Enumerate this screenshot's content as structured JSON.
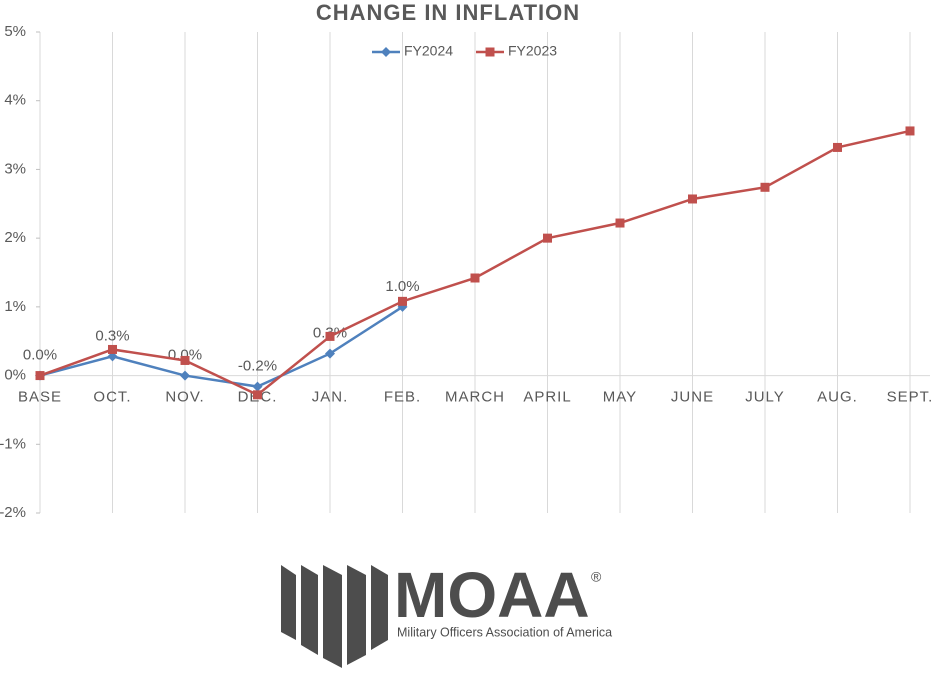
{
  "chart_data": {
    "type": "line",
    "title": "CHANGE IN INFLATION",
    "categories": [
      "BASE",
      "OCT.",
      "NOV.",
      "DEC.",
      "JAN.",
      "FEB.",
      "MARCH",
      "APRIL",
      "MAY",
      "JUNE",
      "JULY",
      "AUG.",
      "SEPT."
    ],
    "series": [
      {
        "name": "FY2024",
        "color": "#4f81bd",
        "marker": "diamond",
        "values": [
          0,
          0.28,
          0,
          -0.16,
          0.32,
          1.0,
          null,
          null,
          null,
          null,
          null,
          null,
          null
        ],
        "value_labels": [
          "0.0%",
          "0.3%",
          "0.0%",
          "-0.2%",
          "0.3%",
          "1.0%",
          null,
          null,
          null,
          null,
          null,
          null,
          null
        ]
      },
      {
        "name": "FY2023",
        "color": "#c0504d",
        "marker": "square",
        "values": [
          0,
          0.38,
          0.22,
          -0.28,
          0.57,
          1.08,
          1.42,
          2.0,
          2.22,
          2.57,
          2.74,
          3.32,
          3.56
        ]
      }
    ],
    "ylim": [
      -2,
      5
    ],
    "yticks": [
      {
        "value": -2,
        "label": "-2%"
      },
      {
        "value": -1,
        "label": "-1%"
      },
      {
        "value": 0,
        "label": "0%"
      },
      {
        "value": 1,
        "label": "1%"
      },
      {
        "value": 2,
        "label": "2%"
      },
      {
        "value": 3,
        "label": "3%"
      },
      {
        "value": 4,
        "label": "4%"
      },
      {
        "value": 5,
        "label": "5%"
      }
    ],
    "grid": true,
    "legend": "top"
  },
  "logo": {
    "name": "MOAA",
    "mark": "®",
    "tagline": "Military Officers Association of America"
  }
}
